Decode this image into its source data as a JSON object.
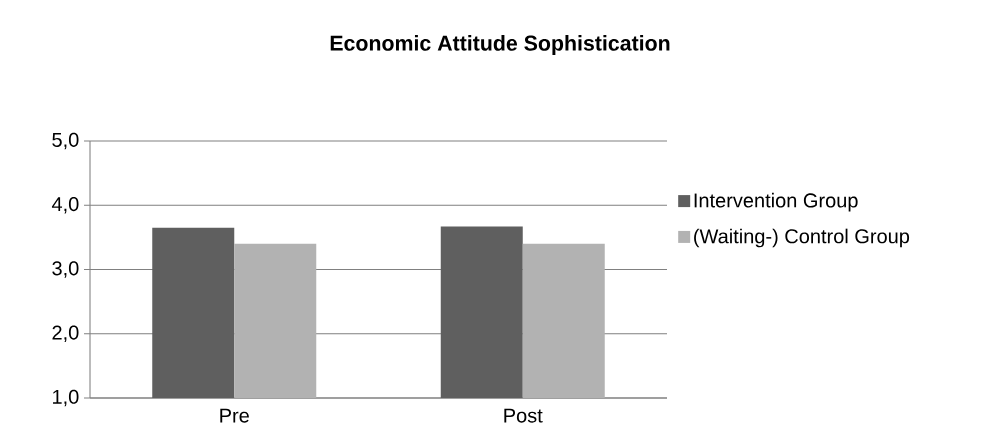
{
  "chart_data": {
    "type": "bar",
    "title": "Economic Attitude Sophistication",
    "categories": [
      "Pre",
      "Post"
    ],
    "series": [
      {
        "name": "Intervention Group",
        "color": "#5f5f5f",
        "values": [
          3.65,
          3.67
        ]
      },
      {
        "name": "(Waiting-) Control Group",
        "color": "#b2b2b2",
        "values": [
          3.4,
          3.4
        ]
      }
    ],
    "ylim": [
      1,
      5
    ],
    "yticks": [
      {
        "value": 1,
        "label": "1,0"
      },
      {
        "value": 2,
        "label": "2,0"
      },
      {
        "value": 3,
        "label": "3,0"
      },
      {
        "value": 4,
        "label": "4,0"
      },
      {
        "value": 5,
        "label": "5,0"
      }
    ],
    "grid": "y",
    "legend": "right"
  }
}
